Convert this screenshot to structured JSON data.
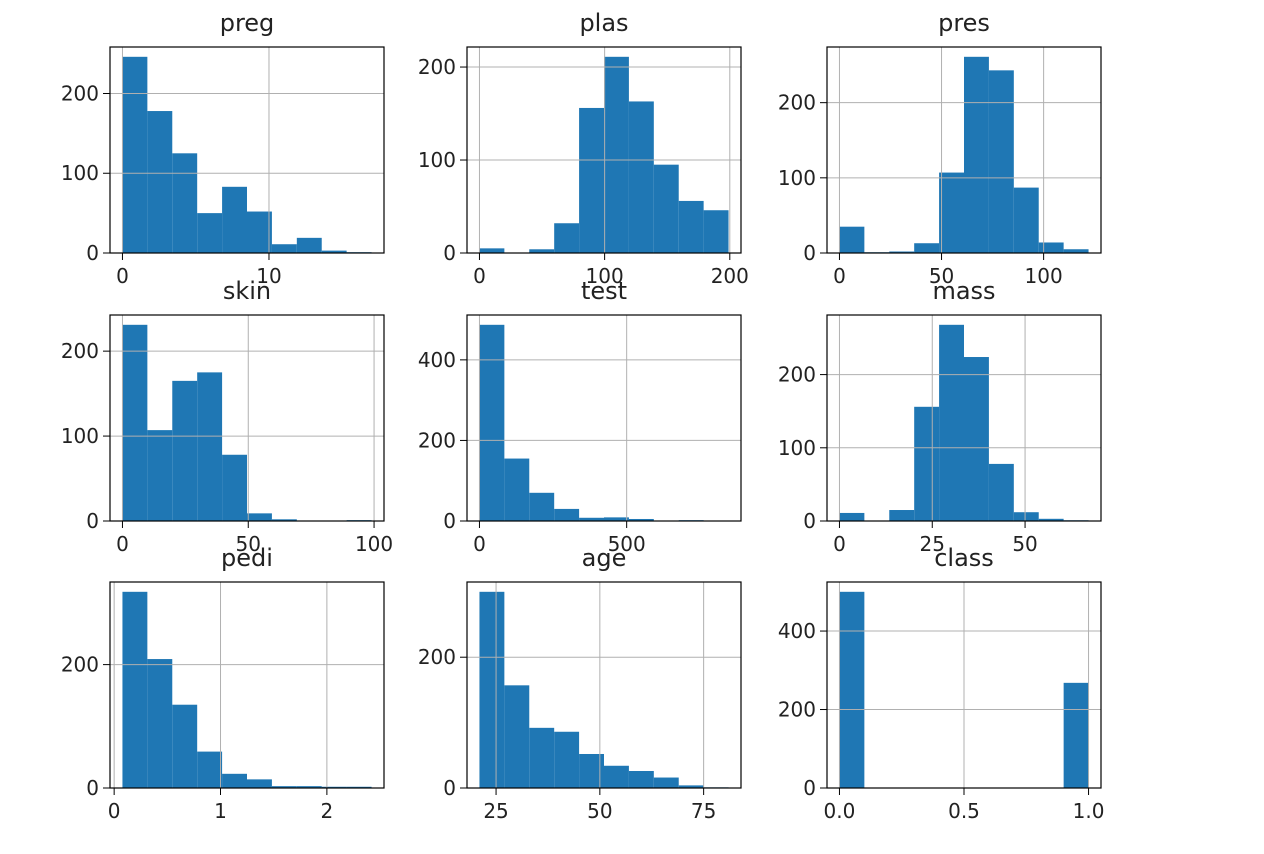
{
  "chart_data": [
    {
      "type": "histogram",
      "title": "preg",
      "color": "#1f77b4",
      "grid": true,
      "bins": [
        0,
        1.7,
        3.4,
        5.1,
        6.8,
        8.5,
        10.2,
        11.9,
        13.6,
        15.3,
        17
      ],
      "values": [
        246,
        178,
        125,
        50,
        83,
        52,
        11,
        19,
        3,
        1
      ],
      "xlim": [
        -0.85,
        17.85
      ],
      "ylim": [
        0,
        258.3
      ],
      "xticks": [
        0,
        10
      ],
      "yticks": [
        0,
        100,
        200
      ]
    },
    {
      "type": "histogram",
      "title": "plas",
      "color": "#1f77b4",
      "grid": true,
      "bins": [
        0,
        19.9,
        39.8,
        59.7,
        79.6,
        99.5,
        119.4,
        139.3,
        159.2,
        179.1,
        199
      ],
      "values": [
        5,
        0,
        4,
        32,
        156,
        211,
        163,
        95,
        56,
        46
      ],
      "xlim": [
        -9.95,
        208.95
      ],
      "ylim": [
        0,
        221.55
      ],
      "xticks": [
        0,
        100,
        200
      ],
      "yticks": [
        0,
        100,
        200
      ]
    },
    {
      "type": "histogram",
      "title": "pres",
      "color": "#1f77b4",
      "grid": true,
      "bins": [
        0,
        12.2,
        24.4,
        36.6,
        48.8,
        61,
        73.2,
        85.4,
        97.6,
        109.8,
        122
      ],
      "values": [
        35,
        1,
        2,
        13,
        107,
        261,
        243,
        87,
        14,
        5
      ],
      "xlim": [
        -6.1,
        128.1
      ],
      "ylim": [
        0,
        274.05
      ],
      "xticks": [
        0,
        50,
        100
      ],
      "yticks": [
        0,
        100,
        200
      ]
    },
    {
      "type": "histogram",
      "title": "skin",
      "color": "#1f77b4",
      "grid": true,
      "bins": [
        0,
        9.9,
        19.8,
        29.7,
        39.6,
        49.5,
        59.4,
        69.3,
        79.2,
        89.1,
        99
      ],
      "values": [
        231,
        107,
        165,
        175,
        78,
        9,
        2,
        0,
        0,
        1
      ],
      "xlim": [
        -4.95,
        103.95
      ],
      "ylim": [
        0,
        242.55
      ],
      "xticks": [
        0,
        50,
        100
      ],
      "yticks": [
        0,
        100,
        200
      ]
    },
    {
      "type": "histogram",
      "title": "test",
      "color": "#1f77b4",
      "grid": true,
      "bins": [
        0,
        84.6,
        169.2,
        253.8,
        338.4,
        423,
        507.6,
        592.2,
        676.8,
        761.4,
        846
      ],
      "values": [
        487,
        155,
        70,
        30,
        8,
        9,
        5,
        1,
        2,
        1
      ],
      "xlim": [
        -42.3,
        888.3
      ],
      "ylim": [
        0,
        511.35
      ],
      "xticks": [
        0,
        500
      ],
      "yticks": [
        0,
        200,
        400
      ]
    },
    {
      "type": "histogram",
      "title": "mass",
      "color": "#1f77b4",
      "grid": true,
      "bins": [
        0,
        6.71,
        13.42,
        20.13,
        26.84,
        33.55,
        40.26,
        46.97,
        53.68,
        60.39,
        67.1
      ],
      "values": [
        11,
        0,
        15,
        156,
        268,
        224,
        78,
        12,
        3,
        1
      ],
      "xlim": [
        -3.355,
        70.455
      ],
      "ylim": [
        0,
        281.4
      ],
      "xticks": [
        0,
        25,
        50
      ],
      "yticks": [
        0,
        100,
        200
      ]
    },
    {
      "type": "histogram",
      "title": "pedi",
      "color": "#1f77b4",
      "grid": true,
      "bins": [
        0.078,
        0.3122,
        0.5464,
        0.7806,
        1.0148,
        1.249,
        1.4832,
        1.7174,
        1.9516,
        2.1858,
        2.42
      ],
      "values": [
        318,
        209,
        135,
        59,
        23,
        14,
        3,
        3,
        2,
        2
      ],
      "xlim": [
        -0.039,
        2.537
      ],
      "ylim": [
        0,
        333.9
      ],
      "xticks": [
        0,
        1,
        2
      ],
      "yticks": [
        0,
        200
      ]
    },
    {
      "type": "histogram",
      "title": "age",
      "color": "#1f77b4",
      "grid": true,
      "bins": [
        21,
        27,
        33,
        39,
        45,
        51,
        57,
        63,
        69,
        75,
        81
      ],
      "values": [
        300,
        157,
        92,
        86,
        52,
        34,
        26,
        16,
        4,
        1
      ],
      "xlim": [
        18,
        84
      ],
      "ylim": [
        0,
        315
      ],
      "xticks": [
        25,
        50,
        75
      ],
      "yticks": [
        0,
        200
      ]
    },
    {
      "type": "histogram",
      "title": "class",
      "color": "#1f77b4",
      "grid": true,
      "bins": [
        0,
        0.1,
        0.2,
        0.3,
        0.4,
        0.5,
        0.6,
        0.7,
        0.8,
        0.9,
        1
      ],
      "values": [
        500,
        0,
        0,
        0,
        0,
        0,
        0,
        0,
        0,
        268
      ],
      "xlim": [
        -0.05,
        1.05
      ],
      "ylim": [
        0,
        525
      ],
      "xticks": [
        {
          "value": 0,
          "label": "0.0"
        },
        {
          "value": 0.5,
          "label": "0.5"
        },
        {
          "value": 1,
          "label": "1.0"
        }
      ],
      "yticks": [
        0,
        200,
        400
      ]
    }
  ]
}
